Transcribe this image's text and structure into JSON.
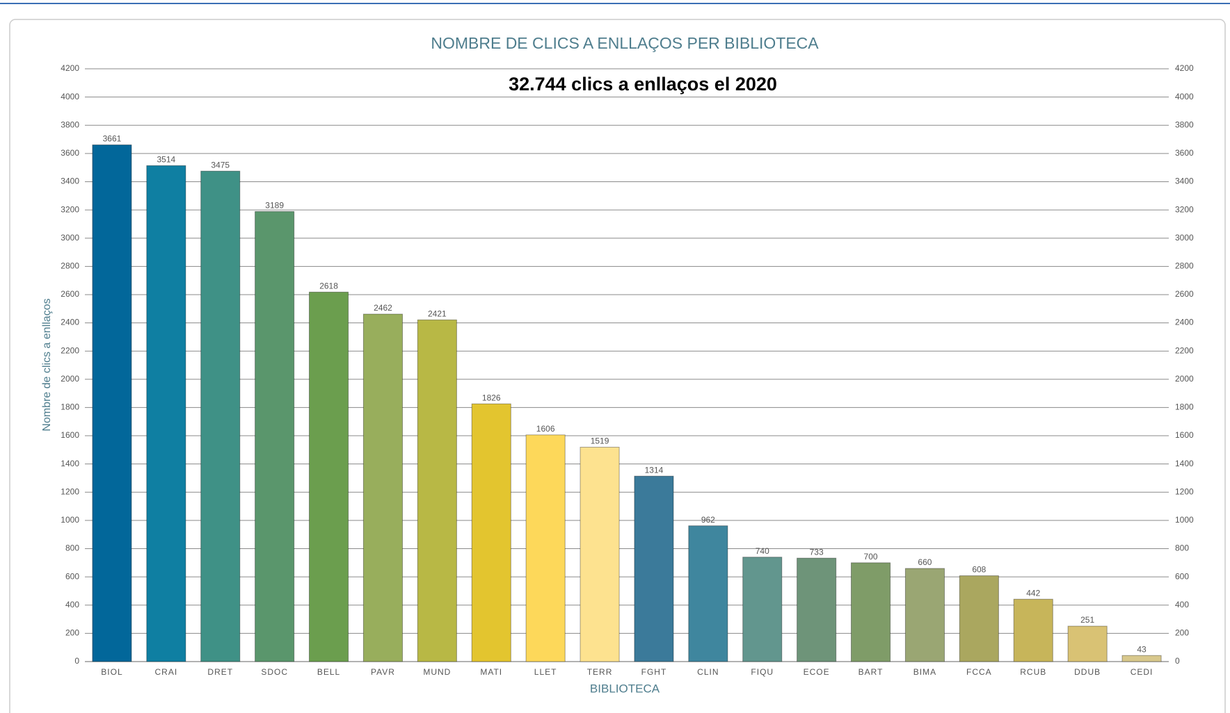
{
  "chart_data": {
    "type": "bar",
    "title": "NOMBRE DE CLICS A ENLLAÇOS PER BIBLIOTECA",
    "subtitle": "32.744 clics a enllaços el 2020",
    "x_label": "BIBLIOTECA",
    "y_label": "Nombre de clics a enllaços",
    "categories": [
      "BIOL",
      "CRAI",
      "DRET",
      "SDOC",
      "BELL",
      "PAVR",
      "MUND",
      "MATI",
      "LLET",
      "TERR",
      "FGHT",
      "CLIN",
      "FIQU",
      "ECOE",
      "BART",
      "BIMA",
      "FCCA",
      "RCUB",
      "DDUB",
      "CEDI"
    ],
    "values": [
      3661,
      3514,
      3475,
      3189,
      2618,
      2462,
      2421,
      1826,
      1606,
      1519,
      1314,
      962,
      740,
      733,
      700,
      660,
      608,
      442,
      251,
      43
    ],
    "colors": [
      "#02679a",
      "#0f7fa2",
      "#3f9186",
      "#5a966c",
      "#6b9e4e",
      "#98ae5c",
      "#b8b845",
      "#e3c52f",
      "#fdd85a",
      "#fde28f",
      "#3b7a9a",
      "#3f869e",
      "#62968e",
      "#6e9479",
      "#7f9c68",
      "#9aa673",
      "#aaa75f",
      "#c7b55a",
      "#d9c274",
      "#d8c88c"
    ],
    "ylim": [
      0,
      4200
    ],
    "yticks": [
      0,
      200,
      400,
      600,
      800,
      1000,
      1200,
      1400,
      1600,
      1800,
      2000,
      2200,
      2400,
      2600,
      2800,
      3000,
      3200,
      3400,
      3600,
      3800,
      4000,
      4200
    ],
    "grid": true
  }
}
